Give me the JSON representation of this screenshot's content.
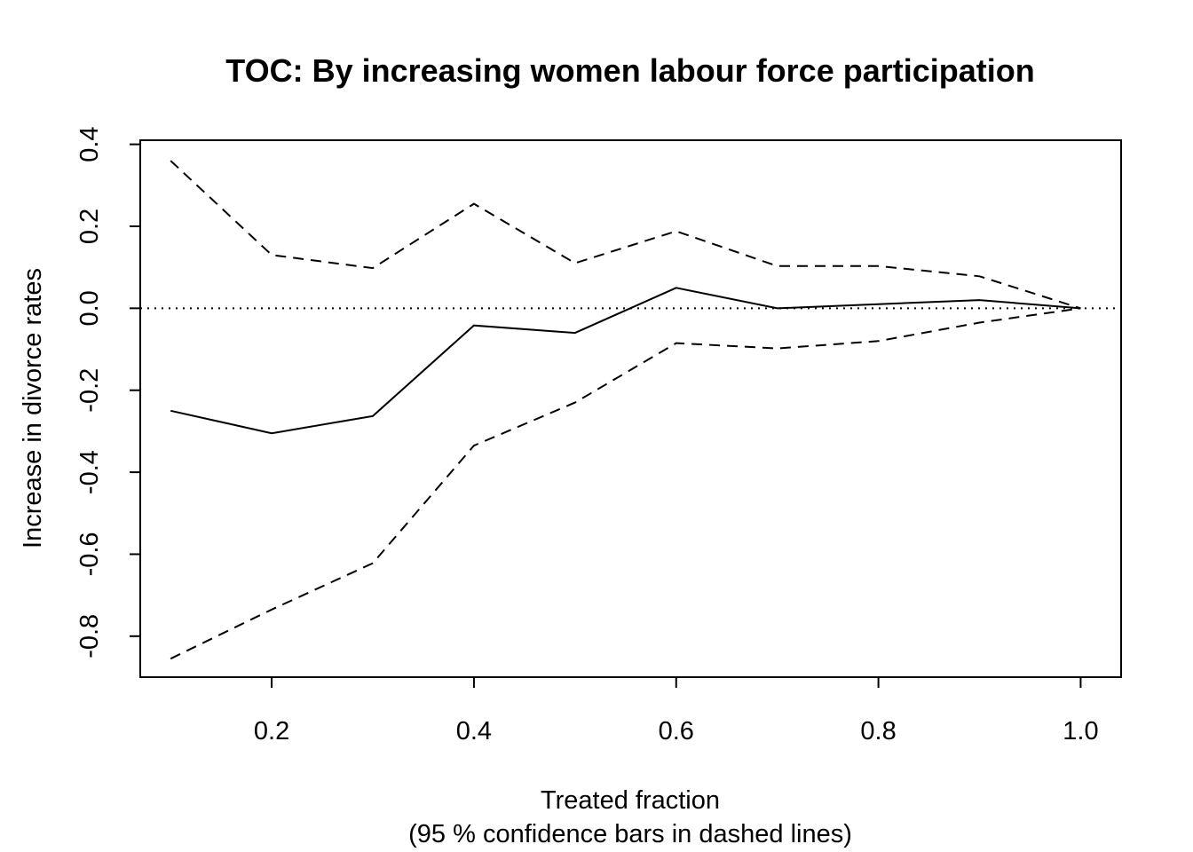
{
  "chart_data": {
    "type": "line",
    "title": "TOC: By increasing women labour force participation",
    "xlabel": "Treated fraction",
    "xlabel_sub": "(95 % confidence bars in dashed lines)",
    "ylabel": "Increase in divorce rates",
    "xlim": [
      0.07,
      1.04
    ],
    "ylim": [
      -0.9,
      0.41
    ],
    "x_ticks": [
      0.2,
      0.4,
      0.6,
      0.8,
      1.0
    ],
    "x_tick_labels": [
      "0.2",
      "0.4",
      "0.6",
      "0.8",
      "1.0"
    ],
    "y_ticks": [
      -0.8,
      -0.6,
      -0.4,
      -0.2,
      0.0,
      0.2,
      0.4
    ],
    "y_tick_labels": [
      "-0.8",
      "-0.6",
      "-0.4",
      "-0.2",
      "0.0",
      "0.2",
      "0.4"
    ],
    "grid": false,
    "reference_line": {
      "y": 0.0,
      "style": "dotted"
    },
    "x": [
      0.1,
      0.2,
      0.3,
      0.4,
      0.5,
      0.6,
      0.7,
      0.8,
      0.9,
      1.0
    ],
    "series": [
      {
        "role": "estimate",
        "style": "solid",
        "values": [
          -0.25,
          -0.305,
          -0.263,
          -0.042,
          -0.06,
          0.05,
          0.0,
          0.01,
          0.02,
          0.0
        ]
      },
      {
        "role": "upper-ci",
        "style": "dashed",
        "values": [
          0.36,
          0.13,
          0.098,
          0.255,
          0.11,
          0.188,
          0.103,
          0.103,
          0.078,
          0.0
        ]
      },
      {
        "role": "lower-ci",
        "style": "dashed",
        "values": [
          -0.855,
          -0.735,
          -0.622,
          -0.335,
          -0.23,
          -0.085,
          -0.098,
          -0.08,
          -0.035,
          0.0
        ]
      }
    ]
  }
}
